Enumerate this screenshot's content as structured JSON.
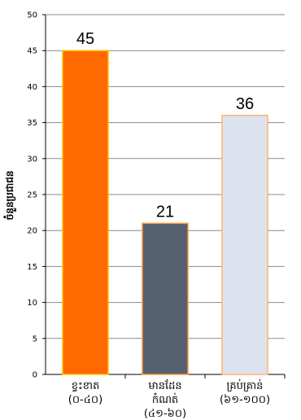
{
  "chart_data": {
    "type": "bar",
    "ylabel": "ចំនួនប្រជាជន",
    "ylim": [
      0,
      50
    ],
    "yticks": [
      0,
      5,
      10,
      15,
      20,
      25,
      30,
      35,
      40,
      45,
      50
    ],
    "grid": true,
    "legend": "none",
    "categories": [
      [
        "ខ្វះខាត",
        "(០-៤០)"
      ],
      [
        "មានដែន",
        "កំណត់",
        "(៤១-៦០)"
      ],
      [
        "គ្រប់គ្រាន់",
        "(៦១-១០០)"
      ]
    ],
    "values": [
      45,
      21,
      36
    ],
    "colors": [
      "#ff6a00",
      "#556070",
      "#dde3ee"
    ],
    "edge_colors": [
      "#ffc000",
      "#ff9933",
      "#ffb366"
    ]
  }
}
